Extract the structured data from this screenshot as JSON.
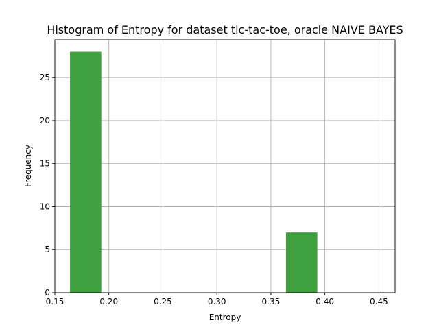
{
  "chart_data": {
    "type": "bar",
    "title": "Histogram of Entropy for dataset tic-tac-toe, oracle NAIVE BAYES",
    "xlabel": "Entropy",
    "ylabel": "Frequency",
    "xlim": [
      0.15,
      0.465
    ],
    "ylim": [
      0,
      29.4
    ],
    "grid": true,
    "bar_color": "#40a040",
    "x_ticks": [
      "0.15",
      "0.20",
      "0.25",
      "0.30",
      "0.35",
      "0.40",
      "0.45"
    ],
    "y_ticks": [
      "0",
      "5",
      "10",
      "15",
      "20",
      "25"
    ],
    "bins": [
      {
        "x0": 0.164,
        "x1": 0.193,
        "value": 28
      },
      {
        "x0": 0.193,
        "x1": 0.221,
        "value": 0
      },
      {
        "x0": 0.221,
        "x1": 0.25,
        "value": 0
      },
      {
        "x0": 0.25,
        "x1": 0.278,
        "value": 0
      },
      {
        "x0": 0.278,
        "x1": 0.307,
        "value": 0
      },
      {
        "x0": 0.307,
        "x1": 0.336,
        "value": 0
      },
      {
        "x0": 0.336,
        "x1": 0.364,
        "value": 0
      },
      {
        "x0": 0.364,
        "x1": 0.393,
        "value": 7
      },
      {
        "x0": 0.393,
        "x1": 0.421,
        "value": 0
      },
      {
        "x0": 0.421,
        "x1": 0.45,
        "value": 0
      }
    ]
  }
}
